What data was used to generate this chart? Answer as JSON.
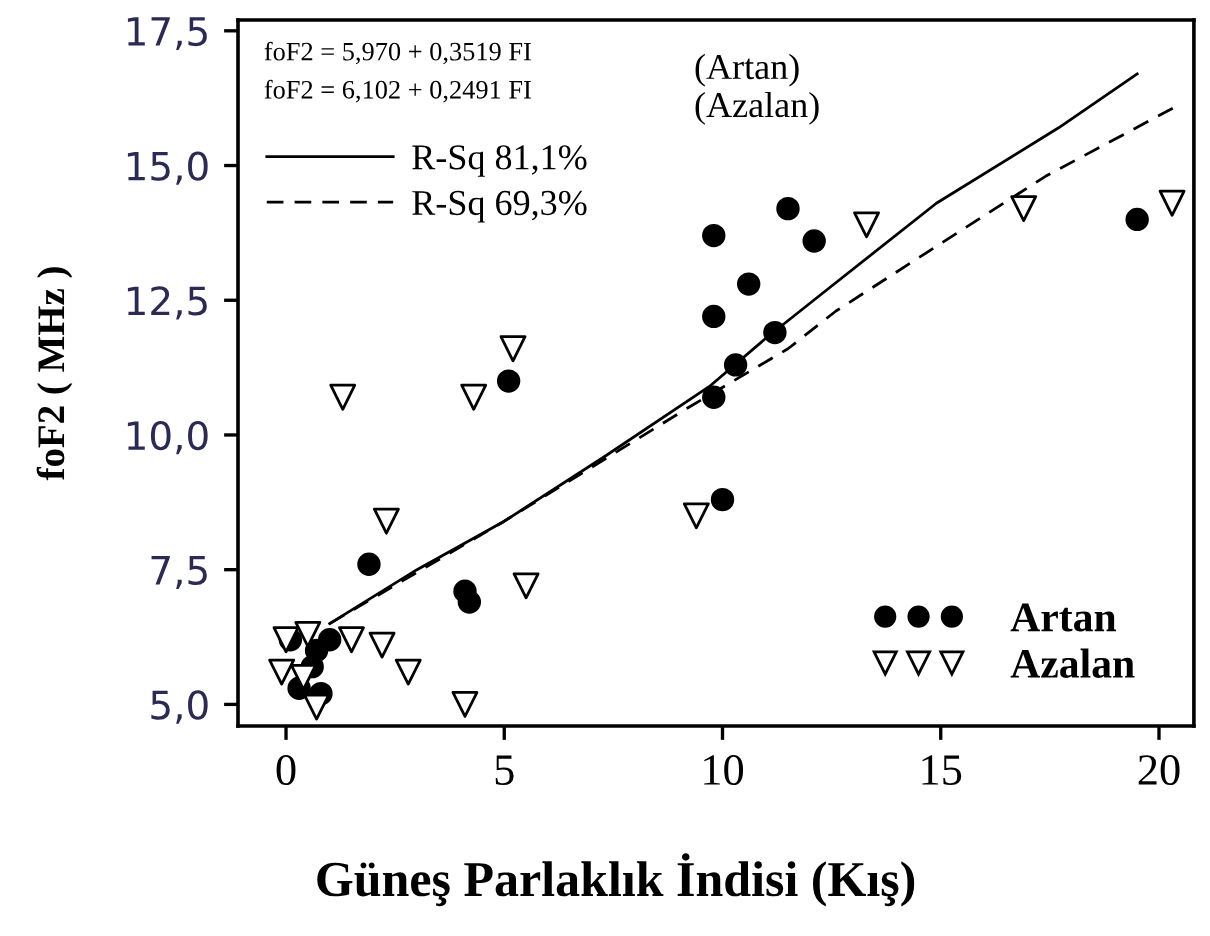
{
  "chart_data": {
    "type": "scatter",
    "xlabel": "Güneş Parlaklık İndisi (Kış)",
    "ylabel": "foF2 ( MHz )",
    "xlim": [
      -1.1,
      20.8
    ],
    "ylim": [
      4.6,
      17.7
    ],
    "xticks": [
      0,
      5,
      10,
      15,
      20
    ],
    "yticks": [
      {
        "value": 5,
        "label": "5,0"
      },
      {
        "value": 7.5,
        "label": "7,5"
      },
      {
        "value": 10,
        "label": "10,0"
      },
      {
        "value": 12.5,
        "label": "12,5"
      },
      {
        "value": 15,
        "label": "15,0"
      },
      {
        "value": 17.5,
        "label": "17,5"
      }
    ],
    "grid": false,
    "legend": "bottom right",
    "annotations": [
      "foF2 = 5,970 + 0,3519 FI",
      "foF2 = 6,102 + 0,2491 FI",
      "(Artan)",
      "(Azalan)"
    ],
    "series": [
      {
        "name": "Artan",
        "marker": "circle",
        "color": "#000000",
        "x": [
          0.1,
          1.0,
          0.7,
          0.6,
          0.3,
          0.8,
          1.9,
          4.1,
          4.2,
          5.1,
          9.8,
          10.0,
          10.3,
          9.8,
          9.8,
          10.6,
          11.2,
          11.5,
          12.1,
          19.5
        ],
        "values": [
          6.2,
          6.2,
          6.0,
          5.7,
          5.3,
          5.2,
          7.6,
          7.1,
          6.9,
          11.0,
          10.7,
          8.8,
          11.3,
          12.2,
          13.7,
          12.8,
          11.9,
          14.2,
          13.6,
          14.0
        ]
      },
      {
        "name": "Azalan",
        "marker": "triangle",
        "color": "#000000",
        "x": [
          0.0,
          0.5,
          -0.1,
          0.4,
          0.7,
          1.5,
          2.2,
          2.8,
          4.1,
          1.3,
          2.3,
          4.3,
          5.2,
          5.5,
          9.4,
          13.3,
          16.9,
          20.3
        ],
        "values": [
          6.2,
          6.3,
          5.6,
          5.5,
          4.95,
          6.2,
          6.1,
          5.6,
          5.0,
          10.7,
          8.4,
          10.7,
          11.6,
          7.2,
          8.5,
          13.9,
          14.2,
          14.3
        ]
      },
      {
        "name": "R-Sq 81,1%",
        "type": "line",
        "line_style": "solid",
        "color": "#000000",
        "x": [
          1.0,
          3.0,
          5.0,
          7.3,
          9.7,
          11.0,
          12.4,
          14.9,
          17.7,
          19.5
        ],
        "values": [
          6.5,
          7.5,
          8.4,
          9.6,
          10.9,
          11.8,
          12.7,
          14.3,
          15.7,
          16.7
        ]
      },
      {
        "name": "R-Sq 69,3%",
        "type": "line",
        "line_style": "dashed",
        "color": "#000000",
        "x": [
          1.0,
          5.0,
          8.0,
          9.2,
          11.5,
          12.6,
          14.9,
          17.4,
          20.4
        ],
        "values": [
          6.5,
          8.4,
          9.9,
          10.5,
          11.6,
          12.3,
          13.5,
          14.8,
          16.1
        ]
      }
    ]
  }
}
